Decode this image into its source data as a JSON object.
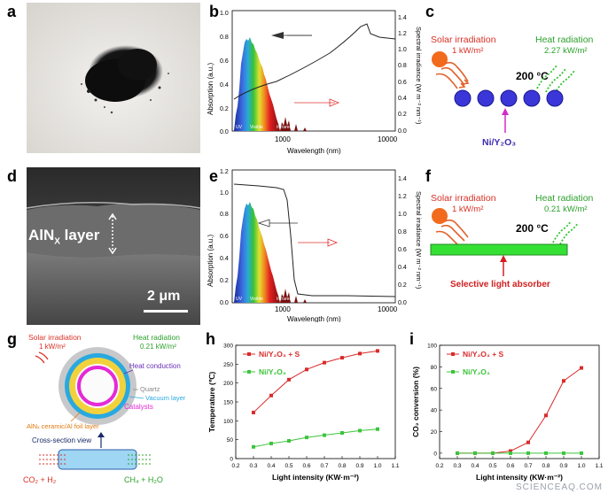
{
  "panel_labels": {
    "a": "a",
    "b": "b",
    "c": "c",
    "d": "d",
    "e": "e",
    "f": "f",
    "g": "g",
    "h": "h",
    "i": "i"
  },
  "b": {
    "ylabel_left": "Absorption (a.u.)",
    "ylabel_right": "Spectral irradiance (W m⁻² nm⁻¹)",
    "xlabel": "Wavelength (nm)",
    "xticks": [
      "1000",
      "10000"
    ],
    "yticks_left": [
      "1.0",
      "0.8",
      "0.6",
      "0.4",
      "0.2",
      "0.0"
    ],
    "yticks_right": [
      "1.4",
      "1.2",
      "1.0",
      "0.8",
      "0.6",
      "0.4",
      "0.2",
      "0.0"
    ],
    "band_labels": {
      "uv": "UV",
      "visible": "Visible",
      "infrared": "Infrared"
    }
  },
  "c": {
    "solar_label": "Solar irradiation",
    "solar_value": "1 kW/m²",
    "heat_label": "Heat radiation",
    "heat_value": "2.27 kW/m²",
    "temp": "200 °C",
    "catalyst": "Ni/Y₂O₃"
  },
  "d": {
    "layer_label": "AlN",
    "layer_sub": "X",
    "layer_suffix": " layer",
    "scale": "2 μm"
  },
  "e": {
    "ylabel_left": "Absorption (a.u.)",
    "ylabel_right": "Spectral irradiance (W m⁻² nm⁻¹)",
    "xlabel": "Wavelength (nm)",
    "xticks": [
      "1000",
      "10000"
    ],
    "yticks_left": [
      "1.2",
      "1.0",
      "0.8",
      "0.6",
      "0.4",
      "0.2",
      "0.0"
    ],
    "yticks_right": [
      "1.4",
      "1.2",
      "1.0",
      "0.8",
      "0.6",
      "0.4",
      "0.2",
      "0.0"
    ],
    "band_labels": {
      "uv": "UV",
      "visible": "Visible",
      "infrared": "Infrared"
    }
  },
  "f": {
    "solar_label": "Solar irradiation",
    "solar_value": "1 kW/m²",
    "heat_label": "Heat radiation",
    "heat_value": "0.21 kW/m²",
    "temp": "200 °C",
    "absorber": "Selective light absorber"
  },
  "g": {
    "solar_label": "Solar irradiation",
    "solar_value": "1 kW/m²",
    "heat_label": "Heat radiation",
    "heat_value": "0.21 kW/m²",
    "heat_conduction": "Heat conduction",
    "quartz": "Quartz",
    "vacuum": "Vacuum layer",
    "catalysts": "Catalysts",
    "aln_layer": "AlNₓ ceramic/Al foil layer",
    "cross_section": "Cross-section view",
    "inlet": "CO₂ + H₂",
    "outlet": "CH₄ + H₂O"
  },
  "chart_data": [
    {
      "panel": "h",
      "type": "line",
      "xlabel": "Light intensity (KW·m⁻²)",
      "ylabel": "Temperature (℃)",
      "xlim": [
        0.2,
        1.1
      ],
      "ylim": [
        0,
        300
      ],
      "xticks": [
        0.2,
        0.3,
        0.4,
        0.5,
        0.6,
        0.7,
        0.8,
        0.9,
        1.0,
        1.1
      ],
      "yticks": [
        0,
        50,
        100,
        150,
        200,
        250,
        300
      ],
      "series": [
        {
          "name": "Ni/Y₂O₃ + S",
          "color": "#d92b2b",
          "x": [
            0.3,
            0.4,
            0.5,
            0.6,
            0.7,
            0.8,
            0.9,
            1.0
          ],
          "y": [
            122,
            167,
            209,
            236,
            254,
            267,
            278,
            285
          ]
        },
        {
          "name": "Ni/Y₂O₃",
          "color": "#3cc43c",
          "x": [
            0.3,
            0.4,
            0.5,
            0.6,
            0.7,
            0.8,
            0.9,
            1.0
          ],
          "y": [
            31,
            40,
            47,
            56,
            62,
            68,
            74,
            78
          ]
        }
      ]
    },
    {
      "panel": "i",
      "type": "line",
      "xlabel": "Light intensity (KW·m⁻²)",
      "ylabel": "CO₂ conversion (%)",
      "xlim": [
        0.2,
        1.1
      ],
      "ylim": [
        -5,
        100
      ],
      "xticks": [
        0.2,
        0.3,
        0.4,
        0.5,
        0.6,
        0.7,
        0.8,
        0.9,
        1.0,
        1.1
      ],
      "yticks": [
        0,
        20,
        40,
        60,
        80,
        100
      ],
      "series": [
        {
          "name": "Ni/Y₂O₃ + S",
          "color": "#d92b2b",
          "x": [
            0.3,
            0.4,
            0.5,
            0.6,
            0.7,
            0.8,
            0.9,
            1.0
          ],
          "y": [
            0,
            0,
            0,
            2,
            10,
            35,
            67,
            79
          ]
        },
        {
          "name": "Ni/Y₂O₃",
          "color": "#3cc43c",
          "x": [
            0.3,
            0.4,
            0.5,
            0.6,
            0.7,
            0.8,
            0.9,
            1.0
          ],
          "y": [
            0,
            0,
            0,
            0,
            0,
            0,
            0,
            0
          ]
        }
      ]
    }
  ],
  "watermark": "SCIENCEAQ.COM"
}
